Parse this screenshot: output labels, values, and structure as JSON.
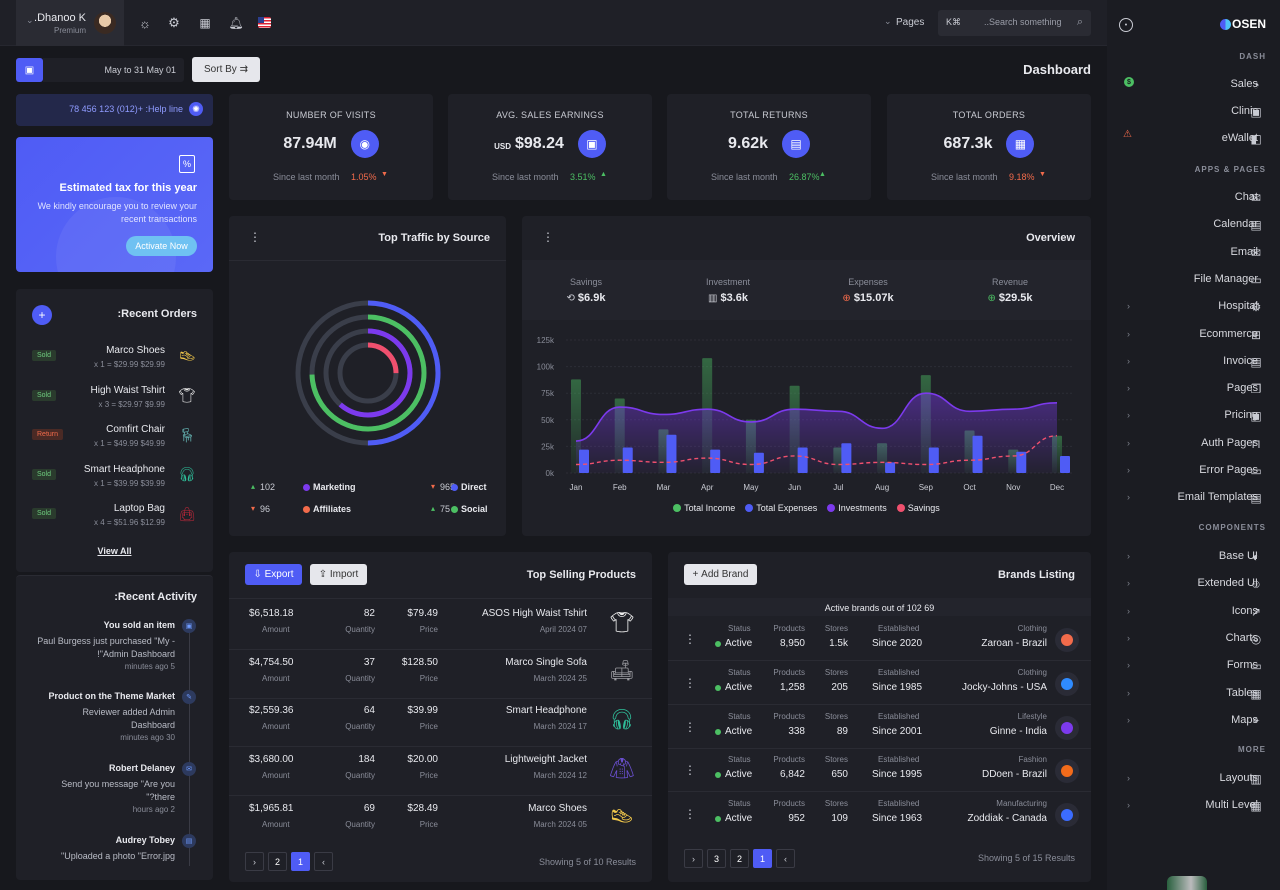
{
  "topbar": {
    "user_name": ".Dhanoo K",
    "user_role": "Premium",
    "flag_label": "US flag",
    "pages_label": "Pages",
    "search_placeholder": "..Search something",
    "search_shortcut": "K⌘"
  },
  "subbar": {
    "date_range": "May to 31 May 01",
    "sort_label": "Sort By",
    "page_title": "Dashboard"
  },
  "helpline": "78 456 123 (012)+ :Help line",
  "promo": {
    "title": "Estimated tax for this year",
    "text1": "We kindly encourage you to review your",
    "text2": "recent transactions",
    "button": "Activate Now"
  },
  "stats": [
    {
      "label": "NUMBER OF VISITS",
      "prefix": "",
      "value": "87.94M",
      "since": "Since last month",
      "change": "1.05%",
      "dir": "down"
    },
    {
      "label": "AVG. SALES EARNINGS",
      "prefix": "USD",
      "value": "$98.24",
      "since": "Since last month",
      "change": "3.51%",
      "dir": "up"
    },
    {
      "label": "TOTAL RETURNS",
      "prefix": "",
      "value": "9.62k",
      "since": "Since last month",
      "change": "26.87%",
      "dir": "up"
    },
    {
      "label": "TOTAL ORDERS",
      "prefix": "",
      "value": "687.3k",
      "since": "Since last month",
      "change": "9.18%",
      "dir": "down"
    }
  ],
  "orders": {
    "title": ":Recent Orders",
    "items": [
      {
        "name": "Marco Shoes",
        "detail": "x 1 = $29.99 $29.99",
        "status": "Sold"
      },
      {
        "name": "High Waist Tshirt",
        "detail": "x 3 = $29.97 $9.99",
        "status": "Sold"
      },
      {
        "name": "Comfirt Chair",
        "detail": "x 1 = $49.99 $49.99",
        "status": "Return"
      },
      {
        "name": "Smart Headphone",
        "detail": "x 1 = $39.99 $39.99",
        "status": "Sold"
      },
      {
        "name": "Laptop Bag",
        "detail": "x 4 = $51.96 $12.99",
        "status": "Sold"
      }
    ],
    "view_all": "View All"
  },
  "activity": {
    "title": ":Recent Activity",
    "items": [
      {
        "title": "You sold an item",
        "l1": "Paul Burgess just purchased \"My -",
        "l2": "!\"Admin Dashboard",
        "time": "minutes ago 5"
      },
      {
        "title": "Product on the Theme Market",
        "l1": "Reviewer added Admin",
        "l2": "Dashboard",
        "time": "minutes ago 30"
      },
      {
        "title": "Robert Delaney",
        "l1": "Send you message \"Are you",
        "l2": "\"?there",
        "time": "hours ago 2"
      },
      {
        "title": "Audrey Tobey",
        "l1": "\"Uploaded a photo \"Error.jpg",
        "l2": "",
        "time": ""
      }
    ]
  },
  "traffic": {
    "title": "Top Traffic by Source",
    "legend": [
      {
        "value": "102",
        "label": "Marketing",
        "color": "#7c3aed",
        "arrow": "up"
      },
      {
        "value": "965",
        "label": "Direct",
        "color": "#4f5cf5",
        "arrow": "down"
      },
      {
        "value": "96",
        "label": "Affiliates",
        "color": "#f26b4b",
        "arrow": "down"
      },
      {
        "value": "75",
        "label": "Social",
        "color": "#4cbf63",
        "arrow": "up"
      }
    ]
  },
  "overview": {
    "title": "Overview",
    "kpis": [
      {
        "label": "Savings",
        "value": "$6.9k"
      },
      {
        "label": "Investment",
        "value": "$3.6k"
      },
      {
        "label": "Expenses",
        "value": "$15.07k"
      },
      {
        "label": "Revenue",
        "value": "$29.5k"
      }
    ],
    "legend": [
      {
        "label": "Total Income",
        "color": "#4cbf63"
      },
      {
        "label": "Total Expenses",
        "color": "#4f5cf5"
      },
      {
        "label": "Investments",
        "color": "#7c3aed"
      },
      {
        "label": "Savings",
        "color": "#f0506e"
      }
    ]
  },
  "chart_data": {
    "type": "bar",
    "categories": [
      "Jan",
      "Feb",
      "Mar",
      "Apr",
      "May",
      "Jun",
      "Jul",
      "Aug",
      "Sep",
      "Oct",
      "Nov",
      "Dec"
    ],
    "y_ticks": [
      "0k",
      "25k",
      "50k",
      "75k",
      "100k",
      "125k"
    ],
    "ylim": [
      0,
      125
    ],
    "series": [
      {
        "name": "Total Income",
        "type": "bar",
        "values": [
          88,
          70,
          41,
          108,
          50,
          82,
          24,
          28,
          92,
          40,
          22,
          35
        ]
      },
      {
        "name": "Total Expenses",
        "type": "bar",
        "values": [
          22,
          24,
          36,
          22,
          19,
          24,
          28,
          10,
          24,
          35,
          20,
          16
        ]
      },
      {
        "name": "Investments",
        "type": "area",
        "values": [
          30,
          62,
          55,
          60,
          48,
          60,
          58,
          42,
          75,
          58,
          60,
          66
        ]
      },
      {
        "name": "Savings",
        "type": "line",
        "values": [
          8,
          12,
          10,
          14,
          8,
          16,
          8,
          10,
          8,
          12,
          16,
          35
        ]
      }
    ]
  },
  "products": {
    "title": "Top Selling Products",
    "export": "Export",
    "import": "Import",
    "rows": [
      {
        "amount": "$6,518.18",
        "qty": "82",
        "price": "$79.49",
        "name": "ASOS High Waist Tshirt",
        "date": "April 2024 07"
      },
      {
        "amount": "$4,754.50",
        "qty": "37",
        "price": "$128.50",
        "name": "Marco Single Sofa",
        "date": "March 2024 25"
      },
      {
        "amount": "$2,559.36",
        "qty": "64",
        "price": "$39.99",
        "name": "Smart Headphone",
        "date": "March 2024 17"
      },
      {
        "amount": "$3,680.00",
        "qty": "184",
        "price": "$20.00",
        "name": "Lightweight Jacket",
        "date": "March 2024 12"
      },
      {
        "amount": "$1,965.81",
        "qty": "69",
        "price": "$28.49",
        "name": "Marco Shoes",
        "date": "March 2024 05"
      }
    ],
    "col_amount": "Amount",
    "col_qty": "Quantity",
    "col_price": "Price",
    "pages": [
      "2",
      "1"
    ],
    "showing": "Showing 5 of 10 Results"
  },
  "brands": {
    "title": "Brands Listing",
    "add": "Add Brand",
    "summary": "Active brands out of 102 69",
    "col_status": "Status",
    "col_products": "Products",
    "col_stores": "Stores",
    "col_est": "Established",
    "rows": [
      {
        "status": "Active",
        "products": "8,950",
        "stores": "1.5k",
        "est": "Since 2020",
        "cat": "Clothing",
        "name": "Zaroan - Brazil",
        "logo": "#f26b4b"
      },
      {
        "status": "Active",
        "products": "1,258",
        "stores": "205",
        "est": "Since 1985",
        "cat": "Clothing",
        "name": "Jocky-Johns - USA",
        "logo": "#2f8bff"
      },
      {
        "status": "Active",
        "products": "338",
        "stores": "89",
        "est": "Since 2001",
        "cat": "Lifestyle",
        "name": "Ginne - India",
        "logo": "#7c3aed"
      },
      {
        "status": "Active",
        "products": "6,842",
        "stores": "650",
        "est": "Since 1995",
        "cat": "Fashion",
        "name": "DDoen - Brazil",
        "logo": "#f26b1b"
      },
      {
        "status": "Active",
        "products": "952",
        "stores": "109",
        "est": "Since 1963",
        "cat": "Manufacturing",
        "name": "Zoddiak - Canada",
        "logo": "#3b6cff"
      }
    ],
    "pages": [
      "3",
      "2",
      "1"
    ],
    "showing": "Showing 5 of 15 Results"
  },
  "sidebar": {
    "logo": "OSEN",
    "dash_head": "DASH",
    "apps_head": "APPS & PAGES",
    "comp_head": "COMPONENTS",
    "more_head": "MORE",
    "dash": [
      "Sales",
      "Clinic",
      "eWallet"
    ],
    "apps": [
      "Chat",
      "Calendar",
      "Email",
      "File Manager",
      "Hospital",
      "Ecommerce",
      "Invoice",
      "Pages",
      "Pricing",
      "Auth Pages",
      "Error Pages",
      "Email Templates"
    ],
    "comps": [
      "Base UI",
      "Extended UI",
      "Icons",
      "Charts",
      "Forms",
      "Tables",
      "Maps"
    ],
    "more": [
      "Layouts",
      "Multi Level"
    ],
    "sales_badge": "$"
  }
}
